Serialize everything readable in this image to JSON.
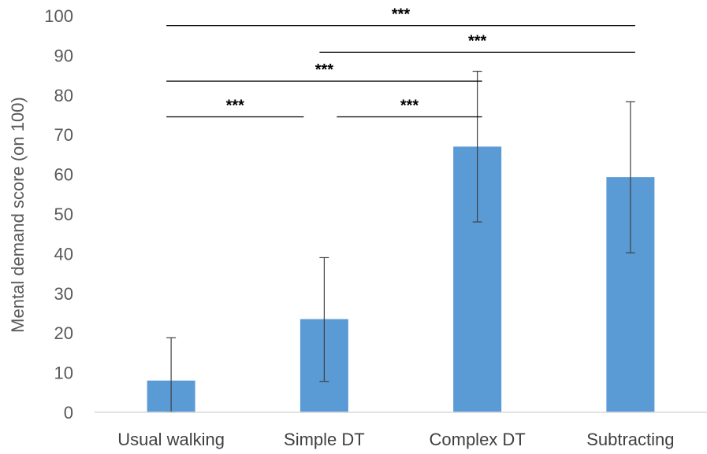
{
  "chart_data": {
    "type": "bar",
    "categories": [
      "Usual walking",
      "Simple DT",
      "Complex DT",
      "Subtracting"
    ],
    "series": [
      {
        "values": [
          8,
          23.5,
          67,
          59.3
        ],
        "error_low": [
          0,
          7.8,
          48,
          40.2
        ],
        "error_high": [
          18.8,
          39,
          86,
          78.3
        ]
      }
    ],
    "ylabel": "Mental demand score (on 100)",
    "xlabel": "",
    "ylim": [
      0,
      100
    ],
    "yticks": [
      0,
      10,
      20,
      30,
      40,
      50,
      60,
      70,
      80,
      90,
      100
    ],
    "grid": false,
    "bar_color": "#5B9BD5",
    "significance": [
      {
        "from": "Usual walking",
        "to": "Simple DT",
        "label": "***",
        "level": 74.5
      },
      {
        "from": "Simple DT",
        "to": "Complex DT",
        "label": "***",
        "level": 74.5
      },
      {
        "from": "Usual walking",
        "to": "Complex DT",
        "label": "***",
        "level": 83.5
      },
      {
        "from": "Simple DT",
        "to": "Subtracting",
        "label": "***",
        "level": 90.8
      },
      {
        "from": "Usual walking",
        "to": "Subtracting",
        "label": "***",
        "level": 97.5
      }
    ]
  }
}
